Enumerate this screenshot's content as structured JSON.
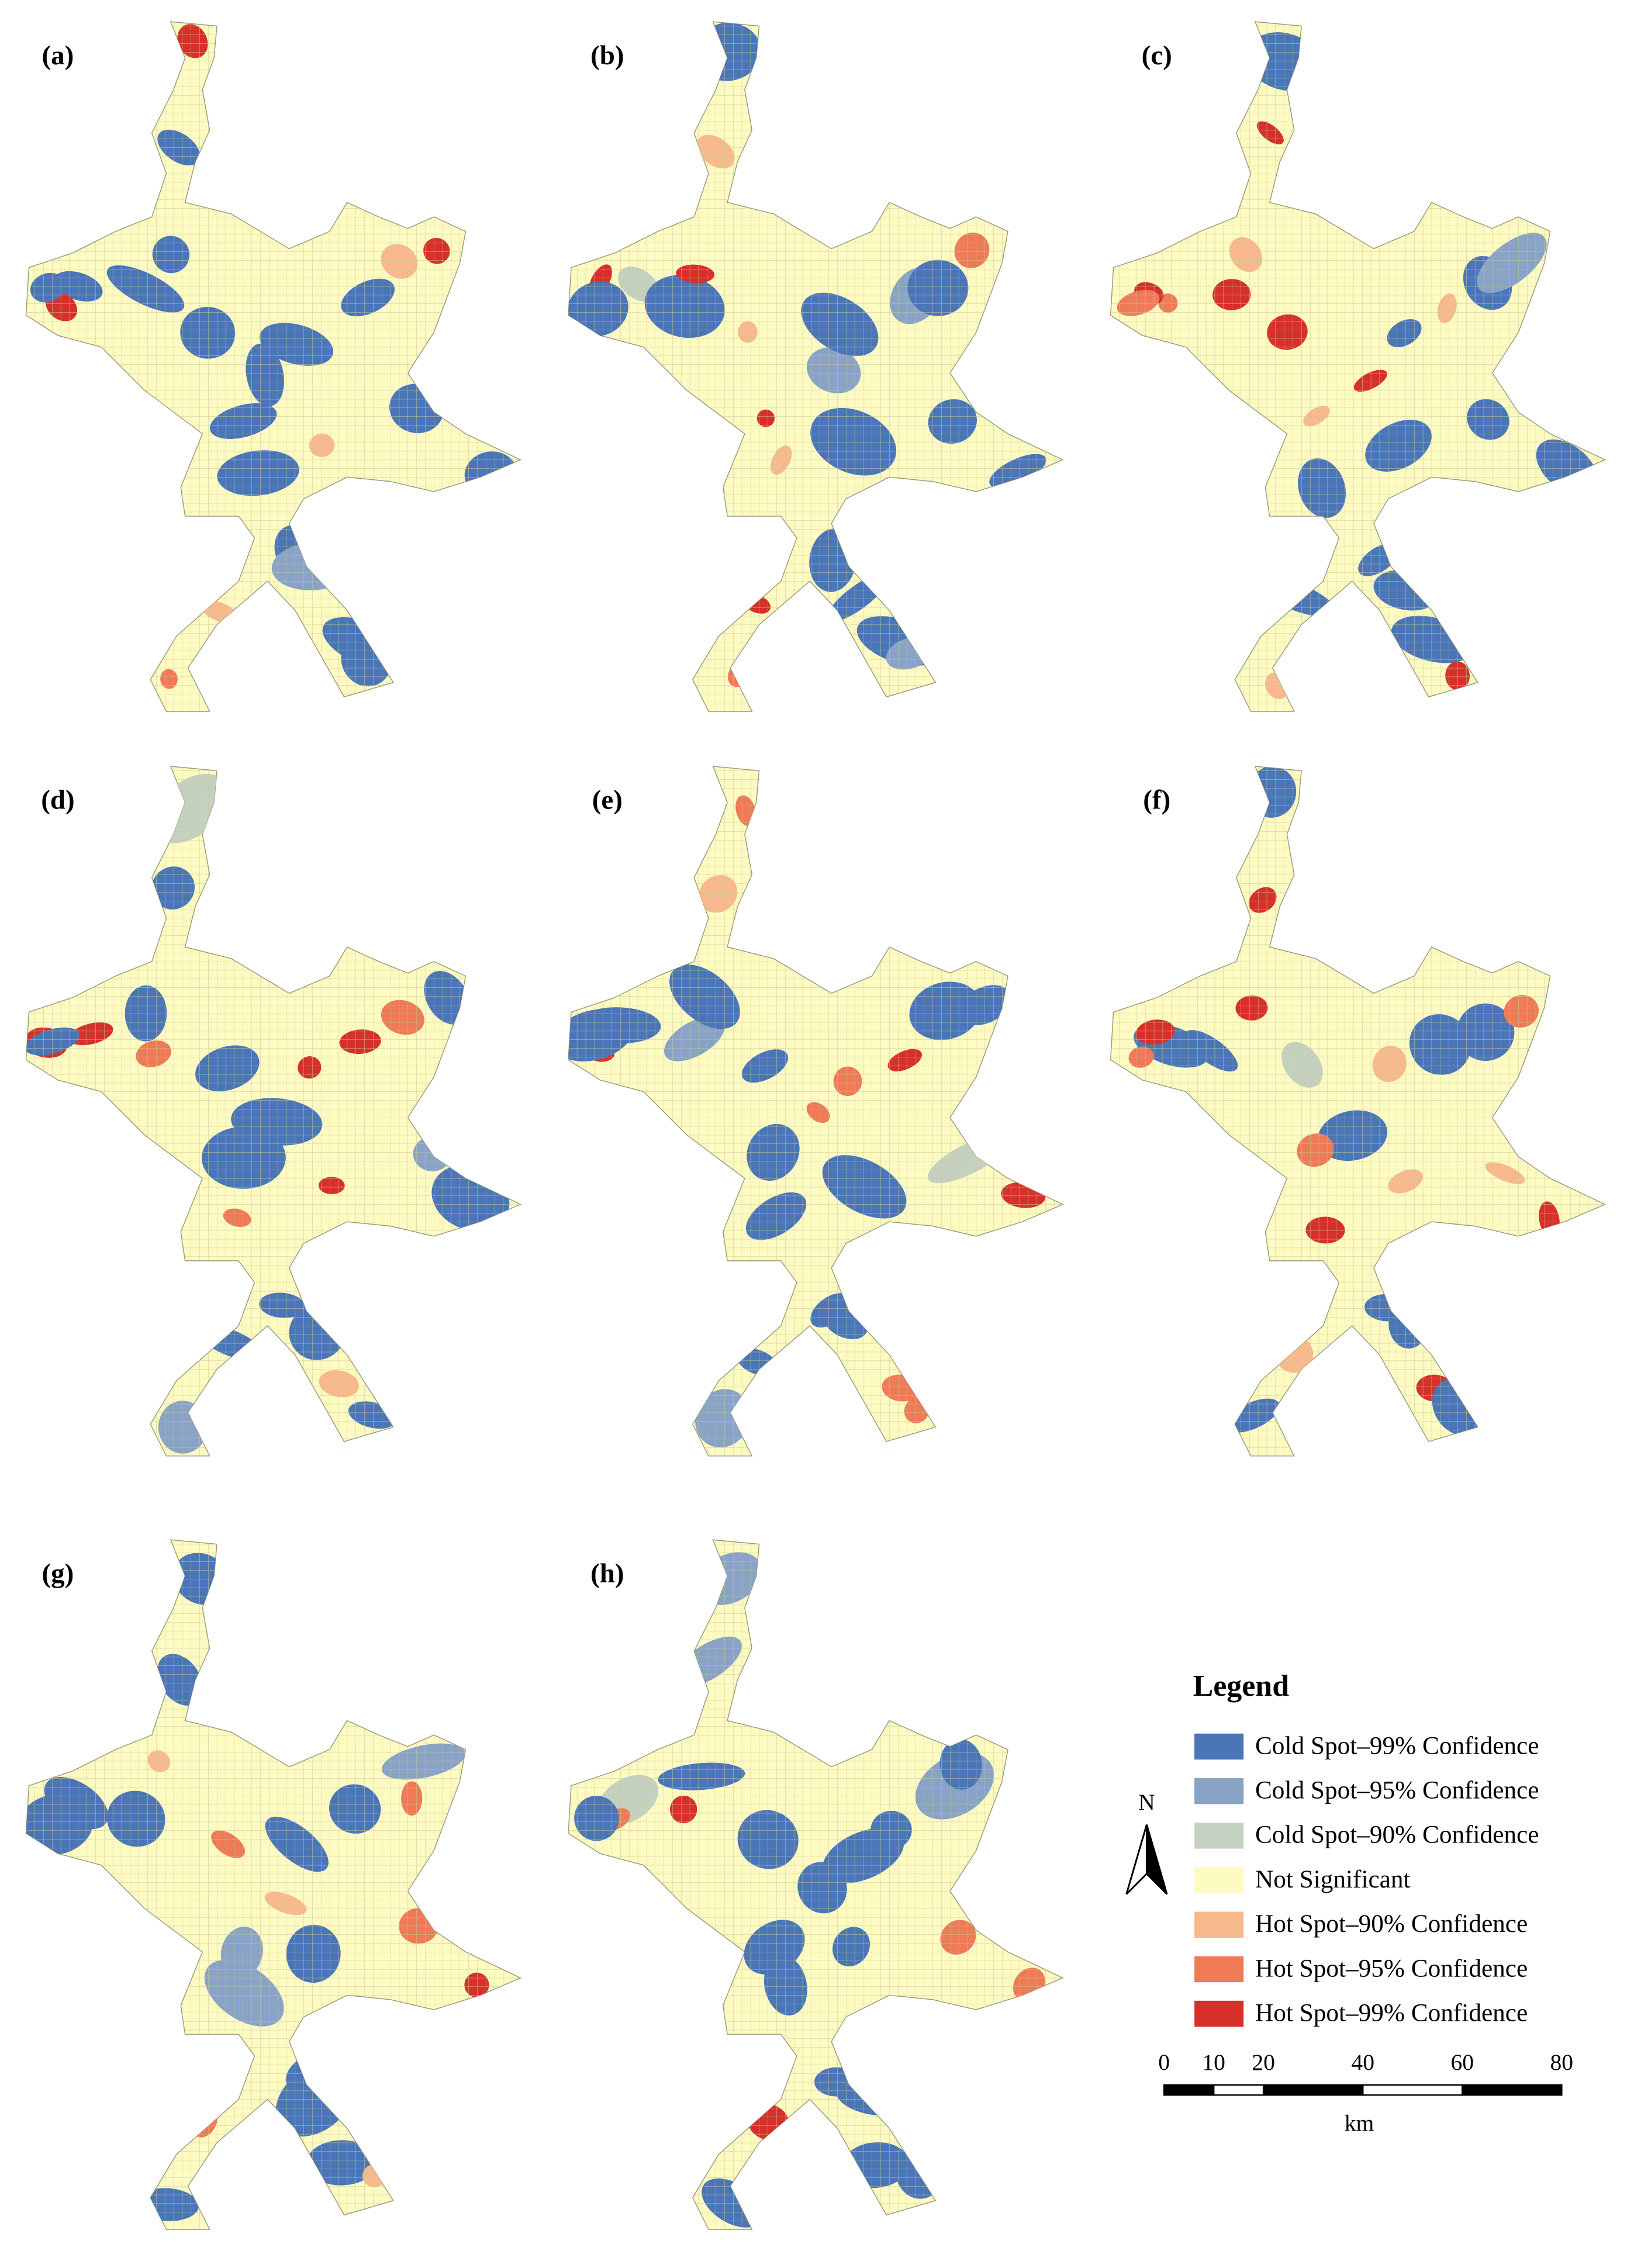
{
  "panels": [
    {
      "label": "(a)"
    },
    {
      "label": "(b)"
    },
    {
      "label": "(c)"
    },
    {
      "label": "(d)"
    },
    {
      "label": "(e)"
    },
    {
      "label": "(f)"
    },
    {
      "label": "(g)"
    },
    {
      "label": "(h)"
    }
  ],
  "legend": {
    "title": "Legend",
    "items": [
      {
        "label": "Cold Spot–99% Confidence",
        "color": "#4a76b8"
      },
      {
        "label": "Cold Spot–95% Confidence",
        "color": "#88a3c6"
      },
      {
        "label": "Cold Spot–90% Confidence",
        "color": "#c4d1c0"
      },
      {
        "label": "Not Significant",
        "color": "#fdfbc2"
      },
      {
        "label": "Hot Spot–90% Confidence",
        "color": "#f8b98c"
      },
      {
        "label": "Hot Spot–95% Confidence",
        "color": "#ee7a56"
      },
      {
        "label": "Hot Spot–99% Confidence",
        "color": "#d7302a"
      }
    ]
  },
  "north": "N",
  "scale": {
    "ticks": [
      0,
      10,
      20,
      40,
      60,
      80
    ],
    "unit": "km"
  }
}
